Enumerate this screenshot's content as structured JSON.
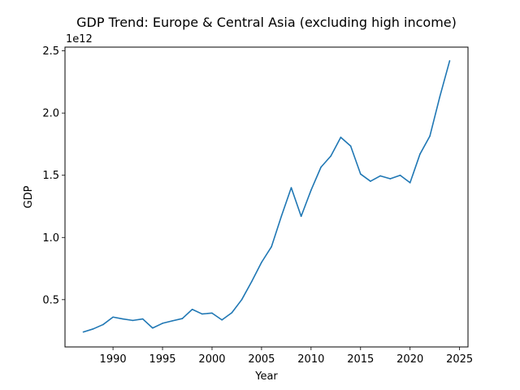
{
  "chart_data": {
    "type": "line",
    "title": "GDP Trend: Europe & Central Asia (excluding high income)",
    "xlabel": "Year",
    "ylabel": "GDP",
    "y_offset_label": "1e12",
    "xlim": [
      1985.15,
      2025.85
    ],
    "ylim": [
      0.12,
      2.53
    ],
    "y_unit_multiplier": 1000000000000,
    "x_ticks": [
      1990,
      1995,
      2000,
      2005,
      2010,
      2015,
      2020,
      2025
    ],
    "y_ticks": [
      0.5,
      1.0,
      1.5,
      2.0,
      2.5
    ],
    "y_tick_labels": [
      "0.5",
      "1.0",
      "1.5",
      "2.0",
      "2.5"
    ],
    "grid": false,
    "legend": "none",
    "line_color": "#1f77b4",
    "series": [
      {
        "x": [
          1987,
          1988,
          1989,
          1990,
          1991,
          1992,
          1993,
          1994,
          1995,
          1996,
          1997,
          1998,
          1999,
          2000,
          2001,
          2002,
          2003,
          2004,
          2005,
          2006,
          2007,
          2008,
          2009,
          2010,
          2011,
          2012,
          2013,
          2014,
          2015,
          2016,
          2017,
          2018,
          2019,
          2020,
          2021,
          2022,
          2023,
          2024
        ],
        "values": [
          0.24,
          0.265,
          0.3,
          0.36,
          0.345,
          0.333,
          0.345,
          0.272,
          0.31,
          0.33,
          0.348,
          0.422,
          0.385,
          0.392,
          0.337,
          0.395,
          0.5,
          0.645,
          0.8,
          0.925,
          1.17,
          1.4,
          1.17,
          1.38,
          1.565,
          1.655,
          1.805,
          1.735,
          1.51,
          1.452,
          1.495,
          1.472,
          1.5,
          1.44,
          1.67,
          1.815,
          2.13,
          2.42
        ]
      }
    ]
  }
}
